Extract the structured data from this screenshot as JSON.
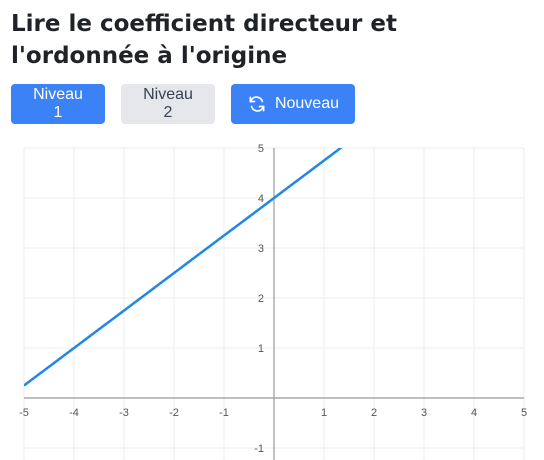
{
  "page": {
    "title": "Lire le coefficient directeur et l'ordonnée à l'origine"
  },
  "toolbar": {
    "level1_label": "Niveau 1",
    "level2_label": "Niveau 2",
    "new_label": "Nouveau",
    "new_icon": "refresh-icon",
    "primary_color": "#3b82f6",
    "secondary_color": "#e5e7eb"
  },
  "chart_data": {
    "type": "line",
    "title": "",
    "xlabel": "",
    "ylabel": "",
    "xlim": [
      -5,
      5
    ],
    "ylim": [
      -1,
      5
    ],
    "x_ticks": [
      -5,
      -4,
      -3,
      -2,
      -1,
      1,
      2,
      3,
      4,
      5
    ],
    "y_ticks": [
      -1,
      1,
      2,
      3,
      4,
      5
    ],
    "grid": true,
    "legend": "none",
    "series": [
      {
        "slope": 0.75,
        "intercept": 4,
        "x": [
          -5,
          1.33
        ],
        "y": [
          0.25,
          5
        ],
        "color": "#1e88e5"
      }
    ]
  }
}
